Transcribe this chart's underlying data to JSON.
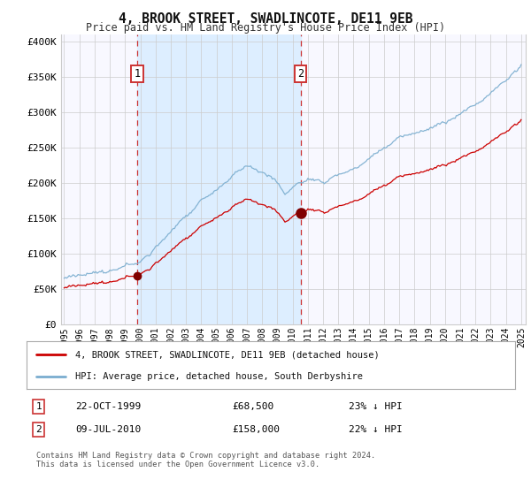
{
  "title": "4, BROOK STREET, SWADLINCOTE, DE11 9EB",
  "subtitle": "Price paid vs. HM Land Registry's House Price Index (HPI)",
  "x_start_year": 1995,
  "x_end_year": 2025,
  "ylim": [
    0,
    410000
  ],
  "yticks": [
    0,
    50000,
    100000,
    150000,
    200000,
    250000,
    300000,
    350000,
    400000
  ],
  "ytick_labels": [
    "£0",
    "£50K",
    "£100K",
    "£150K",
    "£200K",
    "£250K",
    "£300K",
    "£350K",
    "£400K"
  ],
  "red_line_color": "#cc0000",
  "blue_line_color": "#7aadcf",
  "shade_color": "#ddeeff",
  "grid_color": "#cccccc",
  "background_color": "#f8f8ff",
  "purchase1_date_num": 1999.81,
  "purchase1_value": 68500,
  "purchase1_label": "1",
  "purchase1_date_str": "22-OCT-1999",
  "purchase1_price_str": "£68,500",
  "purchase1_hpi_str": "23% ↓ HPI",
  "purchase2_date_num": 2010.52,
  "purchase2_value": 158000,
  "purchase2_label": "2",
  "purchase2_date_str": "09-JUL-2010",
  "purchase2_price_str": "£158,000",
  "purchase2_hpi_str": "22% ↓ HPI",
  "legend_label_red": "4, BROOK STREET, SWADLINCOTE, DE11 9EB (detached house)",
  "legend_label_blue": "HPI: Average price, detached house, South Derbyshire",
  "footnote": "Contains HM Land Registry data © Crown copyright and database right 2024.\nThis data is licensed under the Open Government Licence v3.0."
}
